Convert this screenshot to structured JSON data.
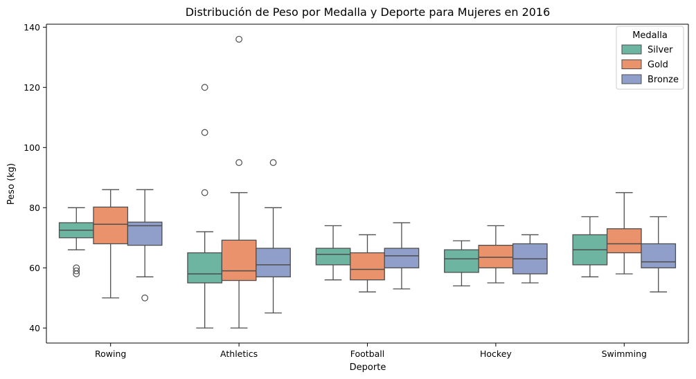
{
  "chart_data": {
    "type": "box",
    "title": "Distribución de Peso por Medalla y Deporte para Mujeres en 2016",
    "xlabel": "Deporte",
    "ylabel": "Peso (kg)",
    "ylim": [
      35,
      141
    ],
    "yticks": [
      40,
      60,
      80,
      100,
      120,
      140
    ],
    "grid": false,
    "legend": {
      "title": "Medalla",
      "position": "top-right"
    },
    "categories": [
      "Rowing",
      "Athletics",
      "Football",
      "Hockey",
      "Swimming"
    ],
    "series": [
      {
        "name": "Silver",
        "color": "#6db5a0",
        "boxes": [
          {
            "whisker_low": 66,
            "q1": 70,
            "median": 72.5,
            "q3": 75,
            "whisker_high": 80,
            "outliers": [
              60,
              59,
              58
            ]
          },
          {
            "whisker_low": 40,
            "q1": 55,
            "median": 58,
            "q3": 65,
            "whisker_high": 72,
            "outliers": [
              85,
              105,
              120
            ]
          },
          {
            "whisker_low": 56,
            "q1": 61,
            "median": 64.5,
            "q3": 66.5,
            "whisker_high": 74,
            "outliers": []
          },
          {
            "whisker_low": 54,
            "q1": 58.5,
            "median": 63,
            "q3": 66,
            "whisker_high": 69,
            "outliers": []
          },
          {
            "whisker_low": 57,
            "q1": 61,
            "median": 66,
            "q3": 71,
            "whisker_high": 77,
            "outliers": []
          }
        ]
      },
      {
        "name": "Gold",
        "color": "#e9926b",
        "boxes": [
          {
            "whisker_low": 50,
            "q1": 68,
            "median": 74.5,
            "q3": 80.2,
            "whisker_high": 86,
            "outliers": []
          },
          {
            "whisker_low": 40,
            "q1": 55.8,
            "median": 59,
            "q3": 69.2,
            "whisker_high": 85,
            "outliers": [
              95,
              136
            ]
          },
          {
            "whisker_low": 52,
            "q1": 56,
            "median": 59.5,
            "q3": 65,
            "whisker_high": 71,
            "outliers": []
          },
          {
            "whisker_low": 55,
            "q1": 60,
            "median": 63.5,
            "q3": 67.5,
            "whisker_high": 74,
            "outliers": []
          },
          {
            "whisker_low": 58,
            "q1": 65,
            "median": 68,
            "q3": 73,
            "whisker_high": 85,
            "outliers": []
          }
        ]
      },
      {
        "name": "Bronze",
        "color": "#8f9fc9",
        "boxes": [
          {
            "whisker_low": 57,
            "q1": 67.5,
            "median": 74,
            "q3": 75.2,
            "whisker_high": 86,
            "outliers": [
              50
            ]
          },
          {
            "whisker_low": 45,
            "q1": 57,
            "median": 61,
            "q3": 66.5,
            "whisker_high": 80,
            "outliers": [
              95
            ]
          },
          {
            "whisker_low": 53,
            "q1": 60,
            "median": 64,
            "q3": 66.5,
            "whisker_high": 75,
            "outliers": []
          },
          {
            "whisker_low": 55,
            "q1": 58,
            "median": 63,
            "q3": 68,
            "whisker_high": 71,
            "outliers": []
          },
          {
            "whisker_low": 52,
            "q1": 60,
            "median": 62,
            "q3": 68,
            "whisker_high": 77,
            "outliers": []
          }
        ]
      }
    ]
  }
}
